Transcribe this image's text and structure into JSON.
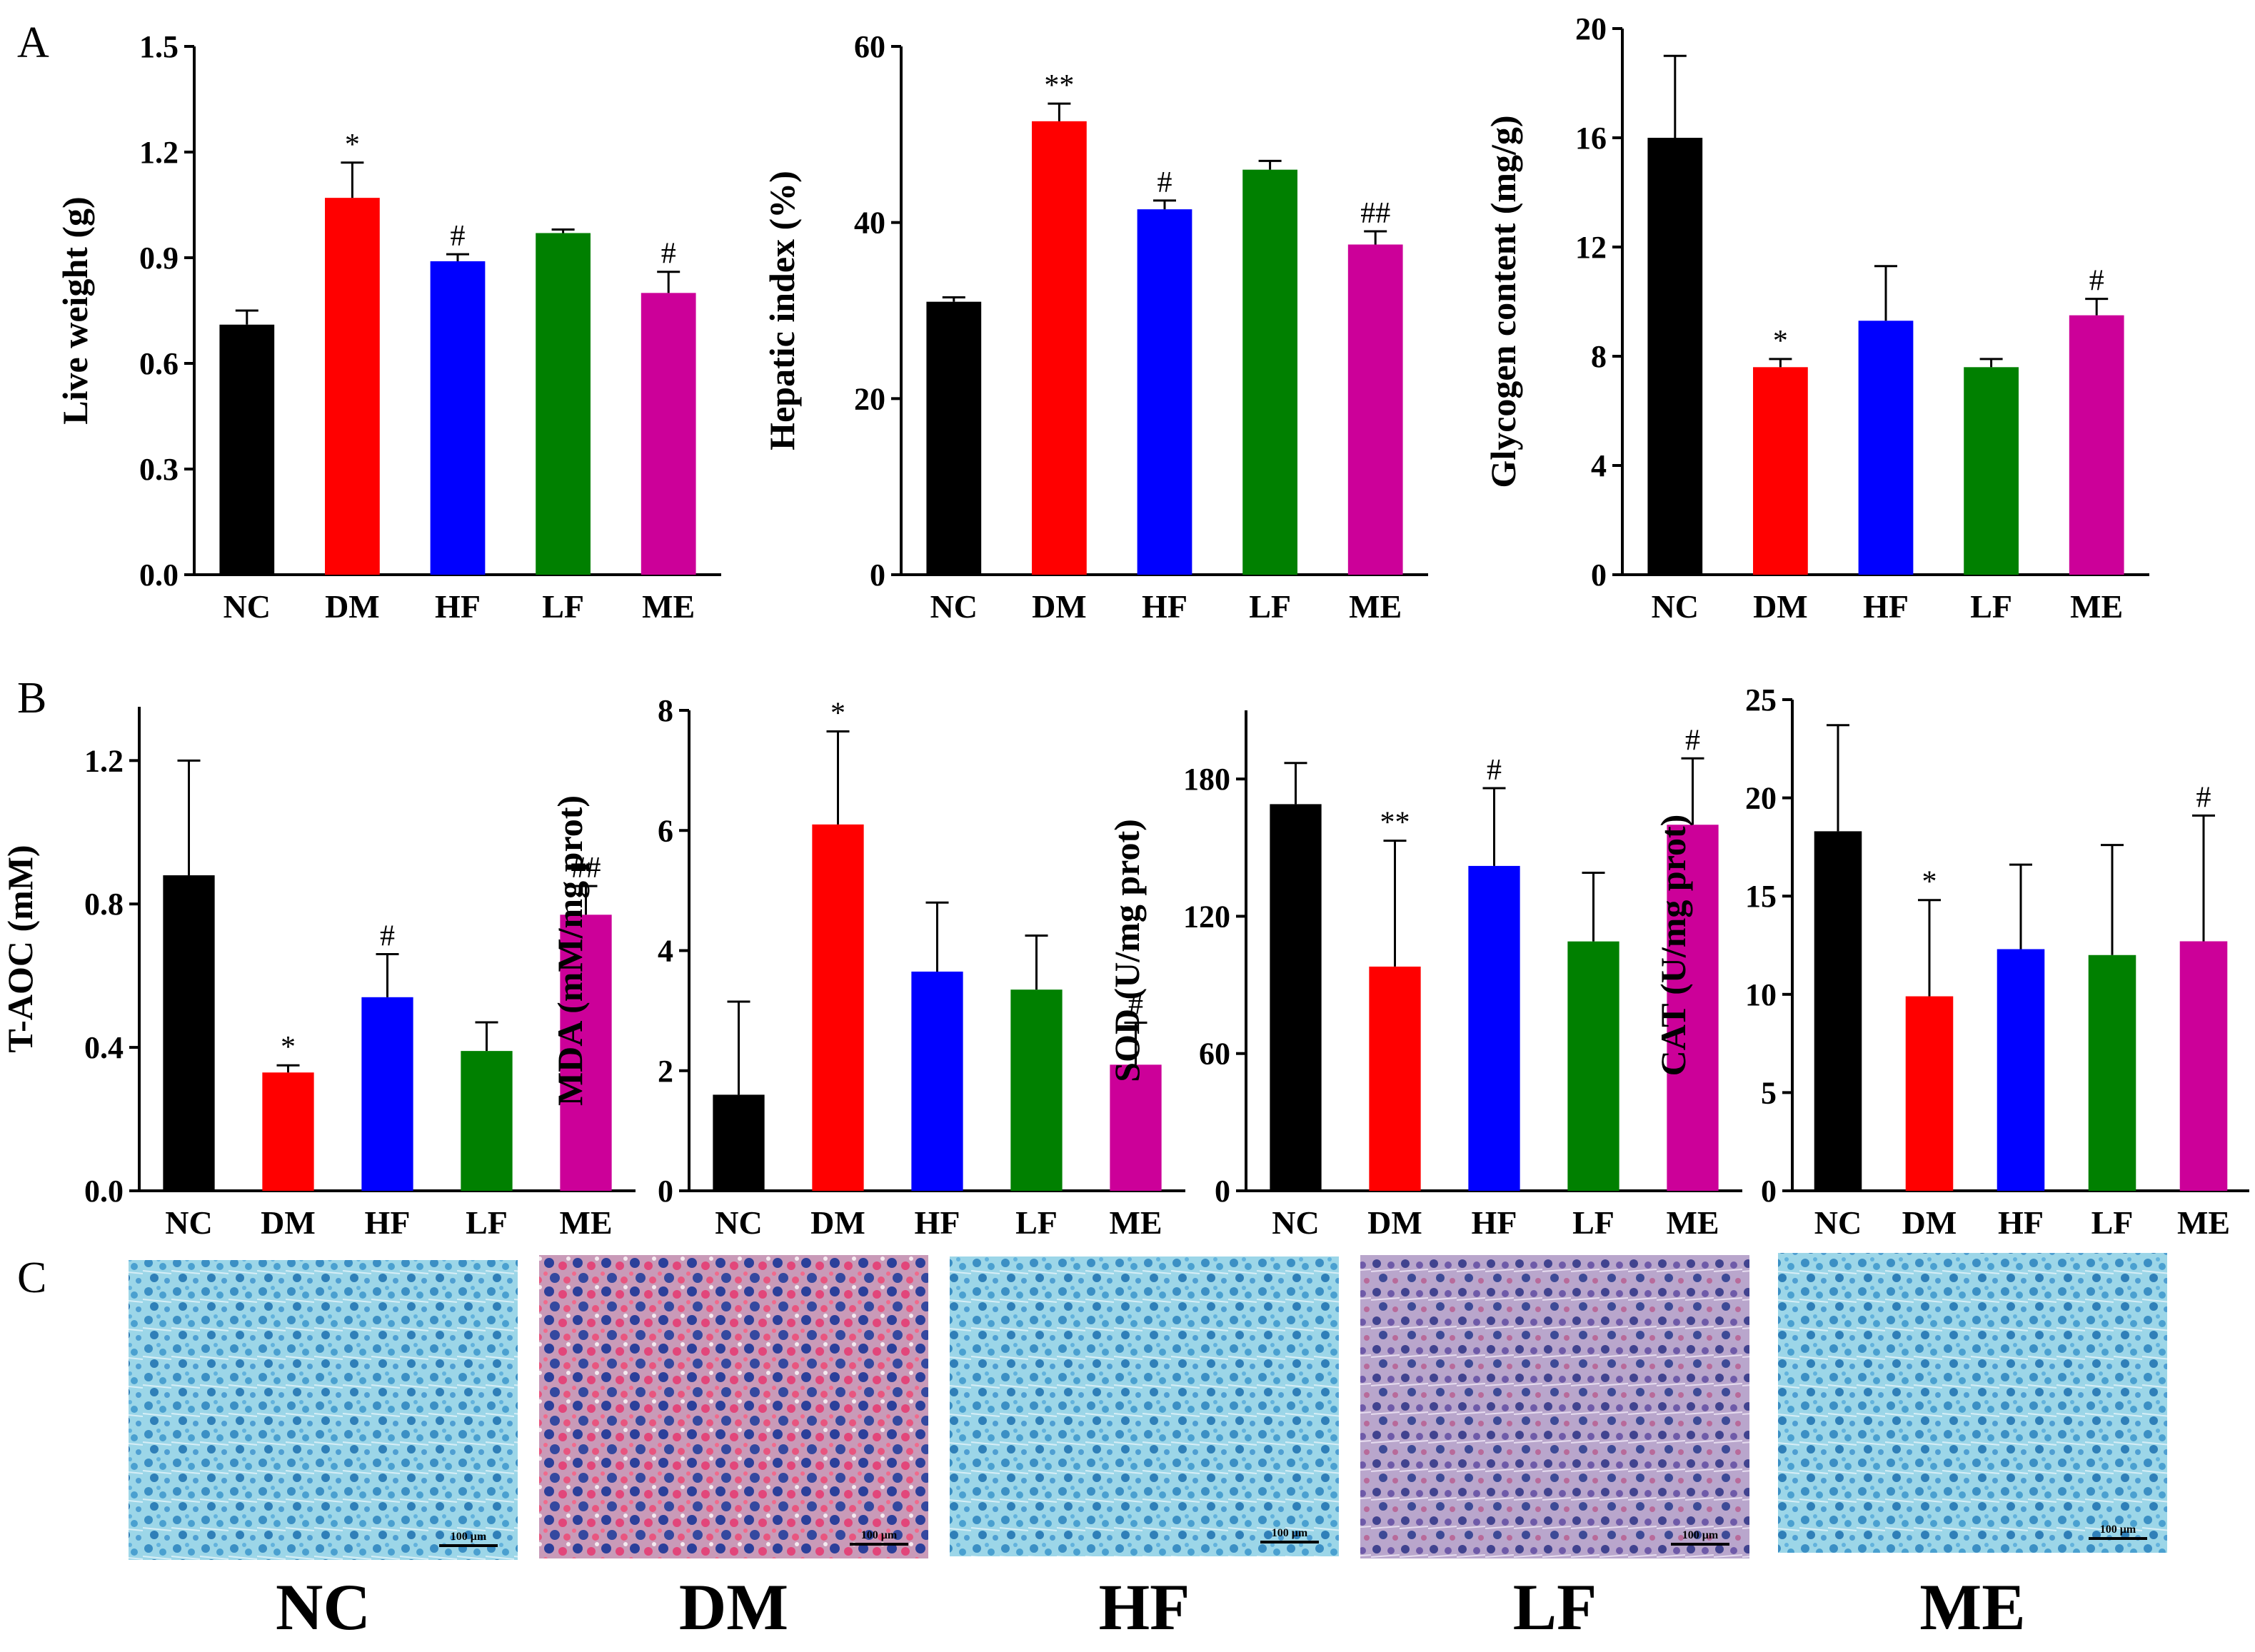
{
  "panel_letters": [
    "A",
    "B",
    "C"
  ],
  "colors": {
    "NC": "#000000",
    "DM": "#ff0000",
    "HF": "#0000ff",
    "LF": "#008000",
    "ME": "#cc0099"
  },
  "chart_data": [
    {
      "type": "bar",
      "panel": "A",
      "categories": [
        "NC",
        "DM",
        "HF",
        "LF",
        "ME"
      ],
      "values": [
        0.71,
        1.07,
        0.89,
        0.97,
        0.8
      ],
      "errors": [
        0.04,
        0.1,
        0.02,
        0.01,
        0.06
      ],
      "significance": [
        "",
        "*",
        "#",
        "",
        "#"
      ],
      "ylabel": "Live weight (g)",
      "ylim": [
        0,
        1.5
      ],
      "yticks": [
        "0.0",
        "0.3",
        "0.6",
        "0.9",
        "1.2",
        "1.5"
      ]
    },
    {
      "type": "bar",
      "panel": "A",
      "categories": [
        "NC",
        "DM",
        "HF",
        "LF",
        "ME"
      ],
      "values": [
        31,
        51.5,
        41.5,
        46,
        37.5
      ],
      "errors": [
        0.5,
        2.0,
        1.0,
        1.0,
        1.5
      ],
      "significance": [
        "",
        "**",
        "#",
        "",
        "##"
      ],
      "ylabel": "Hepatic index (%)",
      "ylim": [
        0,
        60
      ],
      "yticks": [
        "0",
        "20",
        "40",
        "60"
      ]
    },
    {
      "type": "bar",
      "panel": "A",
      "categories": [
        "NC",
        "DM",
        "HF",
        "LF",
        "ME"
      ],
      "values": [
        16,
        7.6,
        9.3,
        7.6,
        9.5
      ],
      "errors": [
        3.0,
        0.3,
        2.0,
        0.3,
        0.6
      ],
      "significance": [
        "",
        "*",
        "",
        "",
        "#"
      ],
      "ylabel": "Glycogen content (mg/g)",
      "ylim": [
        0,
        20
      ],
      "yticks": [
        "0",
        "4",
        "8",
        "12",
        "16",
        "20"
      ]
    },
    {
      "type": "bar",
      "panel": "B",
      "categories": [
        "NC",
        "DM",
        "HF",
        "LF",
        "ME"
      ],
      "values": [
        0.88,
        0.33,
        0.54,
        0.39,
        0.77
      ],
      "errors": [
        0.32,
        0.02,
        0.12,
        0.08,
        0.08
      ],
      "significance": [
        "",
        "*",
        "#",
        "",
        "##"
      ],
      "ylabel": "T-AOC (mM)",
      "ylim": [
        0,
        1.35
      ],
      "yticks": [
        "0.0",
        "0.4",
        "0.8",
        "1.2"
      ]
    },
    {
      "type": "bar",
      "panel": "B",
      "categories": [
        "NC",
        "DM",
        "HF",
        "LF",
        "ME"
      ],
      "values": [
        1.6,
        6.1,
        3.65,
        3.35,
        2.1
      ],
      "errors": [
        1.55,
        1.55,
        1.15,
        0.9,
        0.7
      ],
      "significance": [
        "",
        "*",
        "",
        "",
        "#"
      ],
      "ylabel": "MDA (mM/mg prot)",
      "ylim": [
        0,
        8
      ],
      "yticks": [
        "0",
        "2",
        "4",
        "6",
        "8"
      ]
    },
    {
      "type": "bar",
      "panel": "B",
      "categories": [
        "NC",
        "DM",
        "HF",
        "LF",
        "ME"
      ],
      "values": [
        169,
        98,
        142,
        109,
        160
      ],
      "errors": [
        18,
        55,
        34,
        30,
        29
      ],
      "significance": [
        "",
        "**",
        "#",
        "",
        "#"
      ],
      "ylabel": "SOD (U/mg prot)",
      "ylim": [
        0,
        210
      ],
      "yticks": [
        "0",
        "60",
        "120",
        "180"
      ]
    },
    {
      "type": "bar",
      "panel": "B",
      "categories": [
        "NC",
        "DM",
        "HF",
        "LF",
        "ME"
      ],
      "values": [
        18.3,
        9.9,
        12.3,
        12.0,
        12.7
      ],
      "errors": [
        5.4,
        4.9,
        4.3,
        5.6,
        6.4
      ],
      "significance": [
        "",
        "*",
        "",
        "",
        "#"
      ],
      "ylabel": "CAT (U/mg prot)",
      "ylim": [
        0,
        25
      ],
      "yticks": [
        "0",
        "5",
        "10",
        "15",
        "20",
        "25"
      ]
    }
  ],
  "micrographs": [
    {
      "label": "NC",
      "scale": "100 μm",
      "tone": "blue"
    },
    {
      "label": "DM",
      "scale": "100 μm",
      "tone": "red"
    },
    {
      "label": "HF",
      "scale": "100 μm",
      "tone": "blue"
    },
    {
      "label": "LF",
      "scale": "100 μm",
      "tone": "purple"
    },
    {
      "label": "ME",
      "scale": "100 μm",
      "tone": "blue"
    }
  ]
}
